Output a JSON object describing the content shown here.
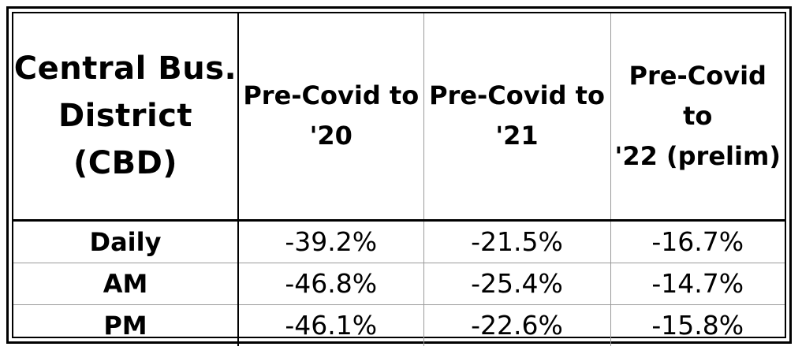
{
  "chart_data": {
    "type": "table",
    "corner_header": [
      "Central Bus.",
      "District",
      "(CBD)"
    ],
    "columns": [
      [
        "Pre-Covid to",
        "'20"
      ],
      [
        "Pre-Covid to",
        "'21"
      ],
      [
        "Pre-Covid to",
        "'22 (prelim)"
      ]
    ],
    "rows": [
      {
        "label": "Daily",
        "values": [
          "-39.2%",
          "-21.5%",
          "-16.7%"
        ]
      },
      {
        "label": "AM",
        "values": [
          "-46.8%",
          "-25.4%",
          "-14.7%"
        ]
      },
      {
        "label": "PM",
        "values": [
          "-46.1%",
          "-22.6%",
          "-15.8%"
        ]
      }
    ]
  }
}
